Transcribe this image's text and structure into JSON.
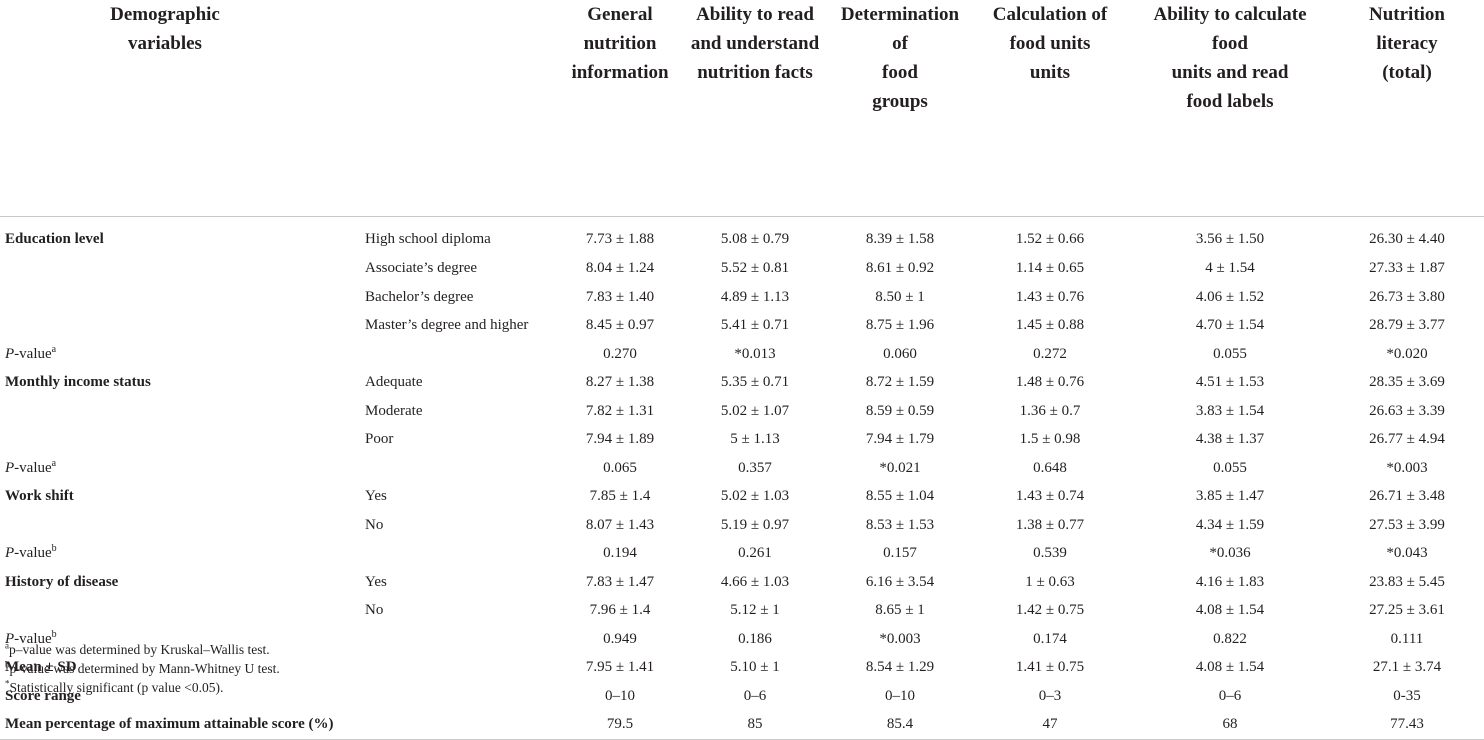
{
  "header": {
    "columns": [
      "Demographic\nvariables",
      "",
      "General\nnutrition\ninformation",
      "Ability to read\nand understand\nnutrition facts",
      "Determination of\nfood\ngroups",
      "Calculation of\nfood units\nunits",
      "Ability to calculate food\nunits and read\nfood labels",
      "Nutrition\nliteracy\n(total)"
    ]
  },
  "rows": [
    {
      "label": "Education level",
      "bold": true,
      "sup": "",
      "sub": "High school diploma",
      "values": [
        "7.73 ± 1.88",
        "5.08 ± 0.79",
        "8.39 ± 1.58",
        "1.52 ± 0.66",
        "3.56 ± 1.50",
        "26.30 ± 4.40"
      ]
    },
    {
      "label": "",
      "bold": false,
      "sup": "",
      "sub": "Associate’s degree",
      "values": [
        "8.04 ± 1.24",
        "5.52 ± 0.81",
        "8.61 ± 0.92",
        "1.14 ± 0.65",
        "4 ± 1.54",
        "27.33 ± 1.87"
      ]
    },
    {
      "label": "",
      "bold": false,
      "sup": "",
      "sub": "Bachelor’s degree",
      "values": [
        "7.83 ± 1.40",
        "4.89 ± 1.13",
        "8.50 ± 1",
        "1.43 ± 0.76",
        "4.06 ± 1.52",
        "26.73 ± 3.80"
      ]
    },
    {
      "label": "",
      "bold": false,
      "sup": "",
      "sub": "Master’s degree and higher",
      "values": [
        "8.45 ± 0.97",
        "5.41 ± 0.71",
        "8.75 ± 1.96",
        "1.45 ± 0.88",
        "4.70 ± 1.54",
        "28.79 ± 3.77"
      ]
    },
    {
      "label": "P-value",
      "bold": false,
      "italicP": true,
      "sup": "a",
      "sub": "",
      "values": [
        "0.270",
        "*0.013",
        "0.060",
        "0.272",
        "0.055",
        "*0.020"
      ]
    },
    {
      "label": "Monthly income status",
      "bold": true,
      "sup": "",
      "sub": "Adequate",
      "values": [
        "8.27 ± 1.38",
        "5.35 ± 0.71",
        "8.72 ± 1.59",
        "1.48 ± 0.76",
        "4.51 ± 1.53",
        "28.35 ± 3.69"
      ]
    },
    {
      "label": "",
      "bold": false,
      "sup": "",
      "sub": "Moderate",
      "values": [
        "7.82 ± 1.31",
        "5.02 ± 1.07",
        "8.59 ± 0.59",
        "1.36 ± 0.7",
        "3.83 ± 1.54",
        "26.63 ± 3.39"
      ]
    },
    {
      "label": "",
      "bold": false,
      "sup": "",
      "sub": "Poor",
      "values": [
        "7.94 ± 1.89",
        "5 ± 1.13",
        "7.94 ± 1.79",
        "1.5 ± 0.98",
        "4.38 ± 1.37",
        "26.77 ± 4.94"
      ]
    },
    {
      "label": "P-value",
      "bold": false,
      "italicP": true,
      "sup": "a",
      "sub": "",
      "values": [
        "0.065",
        "0.357",
        "*0.021",
        "0.648",
        "0.055",
        "*0.003"
      ]
    },
    {
      "label": "Work shift",
      "bold": true,
      "sup": "",
      "sub": "Yes",
      "values": [
        "7.85 ± 1.4",
        "5.02 ± 1.03",
        "8.55 ± 1.04",
        "1.43 ± 0.74",
        "3.85 ± 1.47",
        "26.71 ± 3.48"
      ]
    },
    {
      "label": "",
      "bold": false,
      "sup": "",
      "sub": "No",
      "values": [
        "8.07 ± 1.43",
        "5.19 ± 0.97",
        "8.53 ± 1.53",
        "1.38 ± 0.77",
        "4.34 ± 1.59",
        "27.53 ± 3.99"
      ]
    },
    {
      "label": "P-value",
      "bold": false,
      "italicP": true,
      "sup": "b",
      "sub": "",
      "values": [
        "0.194",
        "0.261",
        "0.157",
        "0.539",
        "*0.036",
        "*0.043"
      ]
    },
    {
      "label": "History of disease",
      "bold": true,
      "sup": "",
      "sub": "Yes",
      "values": [
        "7.83 ± 1.47",
        "4.66 ± 1.03",
        "6.16 ± 3.54",
        "1 ± 0.63",
        "4.16 ± 1.83",
        "23.83 ± 5.45"
      ]
    },
    {
      "label": "",
      "bold": false,
      "sup": "",
      "sub": "No",
      "values": [
        "7.96 ± 1.4",
        "5.12 ± 1",
        "8.65 ± 1",
        "1.42 ± 0.75",
        "4.08 ± 1.54",
        "27.25 ± 3.61"
      ]
    },
    {
      "label": "P-value",
      "bold": false,
      "italicP": true,
      "sup": "b",
      "sub": "",
      "values": [
        "0.949",
        "0.186",
        "*0.003",
        "0.174",
        "0.822",
        "0.111"
      ]
    },
    {
      "label": "Mean ± SD",
      "bold": true,
      "sup": "",
      "sub": "",
      "values": [
        "7.95 ± 1.41",
        "5.10 ± 1",
        "8.54 ± 1.29",
        "1.41 ± 0.75",
        "4.08 ± 1.54",
        "27.1 ± 3.74"
      ]
    },
    {
      "label": "Score range",
      "bold": true,
      "sup": "",
      "sub": "",
      "values": [
        "0–10",
        "0–6",
        "0–10",
        "0–3",
        "0–6",
        "0-35"
      ]
    },
    {
      "label": "Mean percentage of maximum attainable score (%)",
      "bold": true,
      "sup": "",
      "sub": "",
      "values": [
        "79.5",
        "85",
        "85.4",
        "47",
        "68",
        "77.43"
      ]
    }
  ],
  "footnotes": [
    {
      "mark": "a",
      "text": "p–value was determined by Kruskal–Wallis test."
    },
    {
      "mark": "b",
      "text": "p-value was determined by Mann-Whitney U test."
    },
    {
      "mark": "*",
      "text": "Statistically significant (p value <0.05)."
    }
  ]
}
